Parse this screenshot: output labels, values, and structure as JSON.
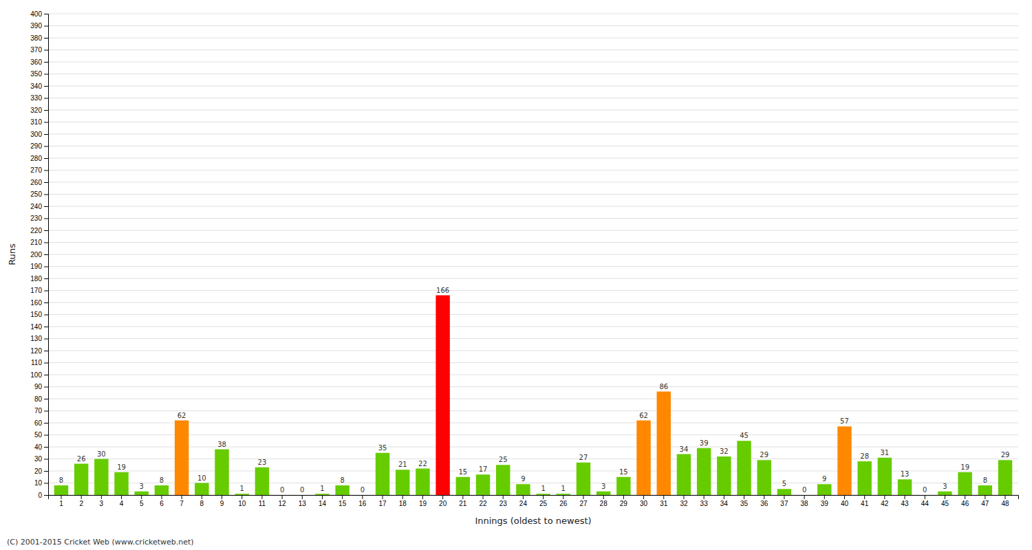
{
  "chart_data": {
    "type": "bar",
    "xlabel": "Innings (oldest to newest)",
    "ylabel": "Runs",
    "categories": [
      "1",
      "2",
      "3",
      "4",
      "5",
      "6",
      "7",
      "8",
      "9",
      "10",
      "11",
      "12",
      "13",
      "14",
      "15",
      "16",
      "17",
      "18",
      "19",
      "20",
      "21",
      "22",
      "23",
      "24",
      "25",
      "26",
      "27",
      "28",
      "29",
      "30",
      "31",
      "32",
      "33",
      "34",
      "35",
      "36",
      "37",
      "38",
      "39",
      "40",
      "41",
      "42",
      "43",
      "44",
      "45",
      "46",
      "47",
      "48"
    ],
    "values": [
      8,
      26,
      30,
      19,
      3,
      8,
      62,
      10,
      38,
      1,
      23,
      0,
      0,
      1,
      8,
      0,
      35,
      21,
      22,
      166,
      15,
      17,
      25,
      9,
      1,
      1,
      27,
      3,
      15,
      62,
      86,
      34,
      39,
      32,
      45,
      29,
      5,
      0,
      9,
      57,
      28,
      31,
      13,
      0,
      3,
      19,
      8,
      29
    ],
    "colors": [
      "#66cc00",
      "#66cc00",
      "#66cc00",
      "#66cc00",
      "#66cc00",
      "#66cc00",
      "#ff8800",
      "#66cc00",
      "#66cc00",
      "#66cc00",
      "#66cc00",
      "#66cc00",
      "#66cc00",
      "#66cc00",
      "#66cc00",
      "#66cc00",
      "#66cc00",
      "#66cc00",
      "#66cc00",
      "#ff0000",
      "#66cc00",
      "#66cc00",
      "#66cc00",
      "#66cc00",
      "#66cc00",
      "#66cc00",
      "#66cc00",
      "#66cc00",
      "#66cc00",
      "#ff8800",
      "#ff8800",
      "#66cc00",
      "#66cc00",
      "#66cc00",
      "#66cc00",
      "#66cc00",
      "#66cc00",
      "#66cc00",
      "#66cc00",
      "#ff8800",
      "#66cc00",
      "#66cc00",
      "#66cc00",
      "#66cc00",
      "#66cc00",
      "#66cc00",
      "#66cc00",
      "#66cc00"
    ],
    "ylim": [
      0,
      400
    ],
    "yticks": [
      0,
      10,
      20,
      30,
      40,
      50,
      60,
      70,
      80,
      90,
      100,
      110,
      120,
      130,
      140,
      150,
      160,
      170,
      180,
      190,
      200,
      210,
      220,
      230,
      240,
      250,
      260,
      270,
      280,
      290,
      300,
      310,
      320,
      330,
      340,
      350,
      360,
      370,
      380,
      390,
      400
    ],
    "grid": true,
    "data_labels": true,
    "annotations": [
      "(C) 2001-2015 Cricket Web (www.cricketweb.net)"
    ]
  }
}
